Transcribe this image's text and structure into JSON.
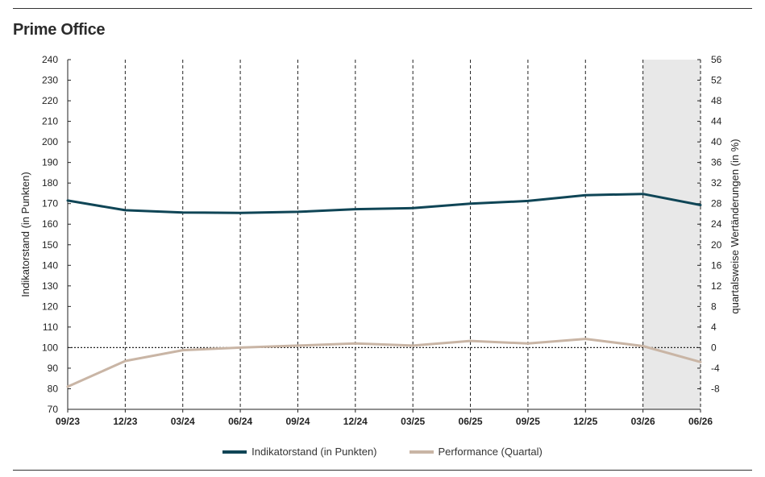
{
  "title": "Prime Office",
  "chart_data": {
    "type": "line",
    "x": [
      "09/23",
      "12/23",
      "03/24",
      "06/24",
      "09/24",
      "12/24",
      "03/25",
      "06/25",
      "09/25",
      "12/25",
      "03/26",
      "06/26"
    ],
    "series": [
      {
        "name": "Indikatorstand (in Punkten)",
        "axis": "left",
        "color": "#0f4556",
        "values": [
          171.5,
          166.8,
          165.7,
          165.5,
          166.0,
          167.3,
          167.8,
          170.0,
          171.3,
          174.1,
          174.7,
          169.3
        ]
      },
      {
        "name": "Performance (Quartal)",
        "axis": "right",
        "color": "#c9b5a5",
        "values": [
          -7.6,
          -2.6,
          -0.5,
          0.0,
          0.4,
          0.8,
          0.4,
          1.3,
          0.8,
          1.7,
          0.3,
          -2.8
        ]
      }
    ],
    "y_left": {
      "label": "Indikatorstand (in Punkten)",
      "min": 70,
      "max": 240,
      "ticks": [
        240,
        230,
        220,
        210,
        200,
        190,
        180,
        170,
        160,
        150,
        140,
        130,
        120,
        110,
        100,
        90,
        80,
        70
      ]
    },
    "y_right": {
      "label": "quartalsweise Wertänderungen (in %)",
      "min": -12,
      "max": 56,
      "ticks": [
        56,
        52,
        48,
        44,
        40,
        36,
        32,
        28,
        24,
        20,
        16,
        12,
        8,
        4,
        0,
        -4,
        -8
      ]
    },
    "reference_line": {
      "axis": "left",
      "value": 100
    },
    "shaded_region": {
      "from": "03/26",
      "to": "06/26",
      "color": "#e8e8e8"
    },
    "grid": {
      "vertical": "dashed",
      "horizontal": false
    },
    "legend_placement": "bottom-center"
  }
}
